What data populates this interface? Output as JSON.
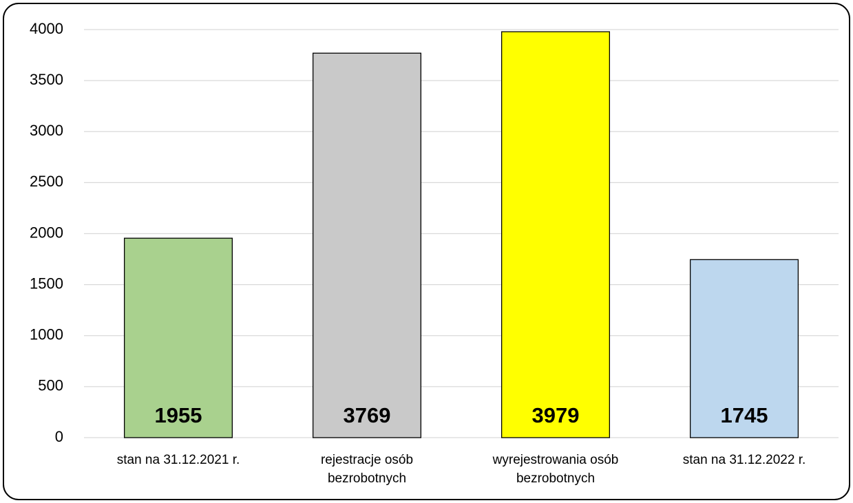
{
  "chart_data": {
    "type": "bar",
    "categories": [
      "stan na 31.12.2021 r.",
      "rejestracje osób bezrobotnych",
      "wyrejestrowania osób bezrobotnych",
      "stan na 31.12.2022 r."
    ],
    "values": [
      1955,
      3769,
      3979,
      1745
    ],
    "colors": [
      "#a9d18e",
      "#c9c9c9",
      "#ffff00",
      "#bdd7ee"
    ],
    "ylim": [
      0,
      4000
    ],
    "yticks": [
      0,
      500,
      1000,
      1500,
      2000,
      2500,
      3000,
      3500,
      4000
    ],
    "grid": true
  }
}
